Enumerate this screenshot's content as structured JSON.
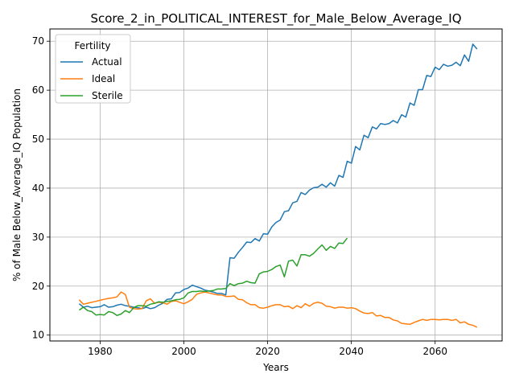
{
  "chart_data": {
    "type": "line",
    "title": "Score_2_in_POLITICAL_INTEREST_for_Male_Below_Average_IQ",
    "xlabel": "Years",
    "ylabel": "% of Male Below_Average_IQ Population",
    "xlim": [
      1968,
      2076
    ],
    "ylim": [
      8.8,
      72.5
    ],
    "xticks": [
      1980,
      2000,
      2020,
      2040,
      2060
    ],
    "yticks": [
      10,
      20,
      30,
      40,
      50,
      60,
      70
    ],
    "grid": true,
    "legend": {
      "title": "Fertility",
      "placement": "top-left"
    },
    "series": [
      {
        "name": "Actual",
        "color": "#1f77b4",
        "x": [
          1975,
          1976,
          1977,
          1978,
          1979,
          1980,
          1981,
          1982,
          1983,
          1984,
          1985,
          1986,
          1987,
          1988,
          1989,
          1990,
          1991,
          1992,
          1993,
          1994,
          1995,
          1996,
          1997,
          1998,
          1999,
          2000,
          2001,
          2002,
          2003,
          2004,
          2005,
          2006,
          2007,
          2008,
          2009,
          2010,
          2011,
          2012,
          2013,
          2014,
          2015,
          2016,
          2017,
          2018,
          2019,
          2020,
          2021,
          2022,
          2023,
          2024,
          2025,
          2026,
          2027,
          2028,
          2029,
          2030,
          2031,
          2032,
          2033,
          2034,
          2035,
          2036,
          2037,
          2038,
          2039,
          2040,
          2041,
          2042,
          2043,
          2044,
          2045,
          2046,
          2047,
          2048,
          2049,
          2050,
          2051,
          2052,
          2053,
          2054,
          2055,
          2056,
          2057,
          2058,
          2059,
          2060,
          2061,
          2062,
          2063,
          2064,
          2065,
          2066,
          2067,
          2068,
          2069,
          2070
        ],
        "values": [
          16.4,
          15.7,
          15.9,
          15.6,
          15.7,
          15.8,
          16.2,
          15.7,
          15.8,
          16.1,
          16.3,
          16.0,
          15.9,
          15.7,
          15.6,
          15.4,
          15.7,
          15.4,
          15.6,
          16.1,
          16.5,
          17.3,
          17.4,
          18.6,
          18.7,
          19.3,
          19.6,
          20.2,
          19.9,
          19.6,
          19.2,
          19.0,
          18.8,
          18.5,
          18.5,
          18.2,
          25.8,
          25.7,
          26.9,
          27.9,
          29.0,
          28.9,
          29.7,
          29.2,
          30.7,
          30.6,
          32.1,
          33.0,
          33.5,
          35.2,
          35.4,
          37.0,
          37.3,
          39.1,
          38.7,
          39.6,
          40.1,
          40.2,
          40.8,
          40.2,
          41.1,
          40.4,
          42.6,
          42.2,
          45.5,
          45.1,
          48.5,
          47.8,
          50.8,
          50.3,
          52.5,
          52.1,
          53.2,
          53.0,
          53.2,
          53.8,
          53.3,
          55.0,
          54.5,
          57.4,
          56.9,
          60.1,
          60.1,
          63.0,
          62.8,
          64.7,
          64.2,
          65.3,
          64.9,
          65.1,
          65.7,
          65.0,
          67.2,
          65.9,
          69.4,
          68.4
        ]
      },
      {
        "name": "Ideal",
        "color": "#ff7f0e",
        "x": [
          1975,
          1976,
          1977,
          1978,
          1979,
          1980,
          1981,
          1982,
          1983,
          1984,
          1985,
          1986,
          1987,
          1988,
          1989,
          1990,
          1991,
          1992,
          1993,
          1994,
          1995,
          1996,
          1997,
          1998,
          1999,
          2000,
          2001,
          2002,
          2003,
          2004,
          2005,
          2006,
          2007,
          2008,
          2009,
          2010,
          2011,
          2012,
          2013,
          2014,
          2015,
          2016,
          2017,
          2018,
          2019,
          2020,
          2021,
          2022,
          2023,
          2024,
          2025,
          2026,
          2027,
          2028,
          2029,
          2030,
          2031,
          2032,
          2033,
          2034,
          2035,
          2036,
          2037,
          2038,
          2039,
          2040,
          2041,
          2042,
          2043,
          2044,
          2045,
          2046,
          2047,
          2048,
          2049,
          2050,
          2051,
          2052,
          2053,
          2054,
          2055,
          2056,
          2057,
          2058,
          2059,
          2060,
          2061,
          2062,
          2063,
          2064,
          2065,
          2066,
          2067,
          2068,
          2069,
          2070
        ],
        "values": [
          17.2,
          16.3,
          16.5,
          16.7,
          16.9,
          17.1,
          17.3,
          17.5,
          17.6,
          17.8,
          18.8,
          18.3,
          15.7,
          15.4,
          15.3,
          15.4,
          17.0,
          17.4,
          16.5,
          16.7,
          16.6,
          16.3,
          16.9,
          17.0,
          16.7,
          16.4,
          16.8,
          17.3,
          18.3,
          18.6,
          18.8,
          18.6,
          18.4,
          18.2,
          18.2,
          17.9,
          17.9,
          18.0,
          17.3,
          17.2,
          16.6,
          16.2,
          16.2,
          15.6,
          15.5,
          15.7,
          16.0,
          16.2,
          16.2,
          15.8,
          15.9,
          15.4,
          16.0,
          15.6,
          16.4,
          15.9,
          16.5,
          16.7,
          16.5,
          15.9,
          15.8,
          15.5,
          15.7,
          15.7,
          15.5,
          15.6,
          15.4,
          14.9,
          14.5,
          14.4,
          14.6,
          13.9,
          14.0,
          13.6,
          13.6,
          13.1,
          12.9,
          12.4,
          12.3,
          12.2,
          12.6,
          12.9,
          13.2,
          13.0,
          13.2,
          13.2,
          13.1,
          13.2,
          13.2,
          13.0,
          13.2,
          12.5,
          12.7,
          12.2,
          12.0,
          11.6
        ]
      },
      {
        "name": "Sterile",
        "color": "#2ca02c",
        "x": [
          1975,
          1976,
          1977,
          1978,
          1979,
          1980,
          1981,
          1982,
          1983,
          1984,
          1985,
          1986,
          1987,
          1988,
          1989,
          1990,
          1991,
          1992,
          1993,
          1994,
          1995,
          1996,
          1997,
          1998,
          1999,
          2000,
          2001,
          2002,
          2003,
          2004,
          2005,
          2006,
          2007,
          2008,
          2009,
          2010,
          2011,
          2012,
          2013,
          2014,
          2015,
          2016,
          2017,
          2018,
          2019,
          2020,
          2021,
          2022,
          2023,
          2024,
          2025,
          2026,
          2027,
          2028,
          2029,
          2030,
          2031,
          2032,
          2033,
          2034,
          2035,
          2036,
          2037,
          2038,
          2039
        ],
        "values": [
          15.1,
          15.7,
          15.0,
          14.8,
          14.1,
          14.2,
          14.1,
          14.8,
          14.6,
          14.0,
          14.3,
          15.0,
          14.6,
          15.6,
          16.0,
          16.0,
          15.9,
          16.3,
          16.5,
          16.8,
          16.7,
          16.9,
          17.0,
          17.2,
          17.3,
          17.6,
          18.6,
          18.9,
          18.9,
          19.0,
          18.9,
          19.0,
          19.1,
          19.4,
          19.4,
          19.5,
          20.5,
          20.1,
          20.5,
          20.6,
          21.0,
          20.7,
          20.6,
          22.5,
          22.9,
          23.0,
          23.4,
          24.0,
          24.3,
          21.9,
          25.1,
          25.3,
          24.1,
          26.4,
          26.4,
          26.1,
          26.7,
          27.6,
          28.4,
          27.3,
          28.1,
          27.7,
          28.8,
          28.7,
          29.8
        ]
      }
    ]
  }
}
